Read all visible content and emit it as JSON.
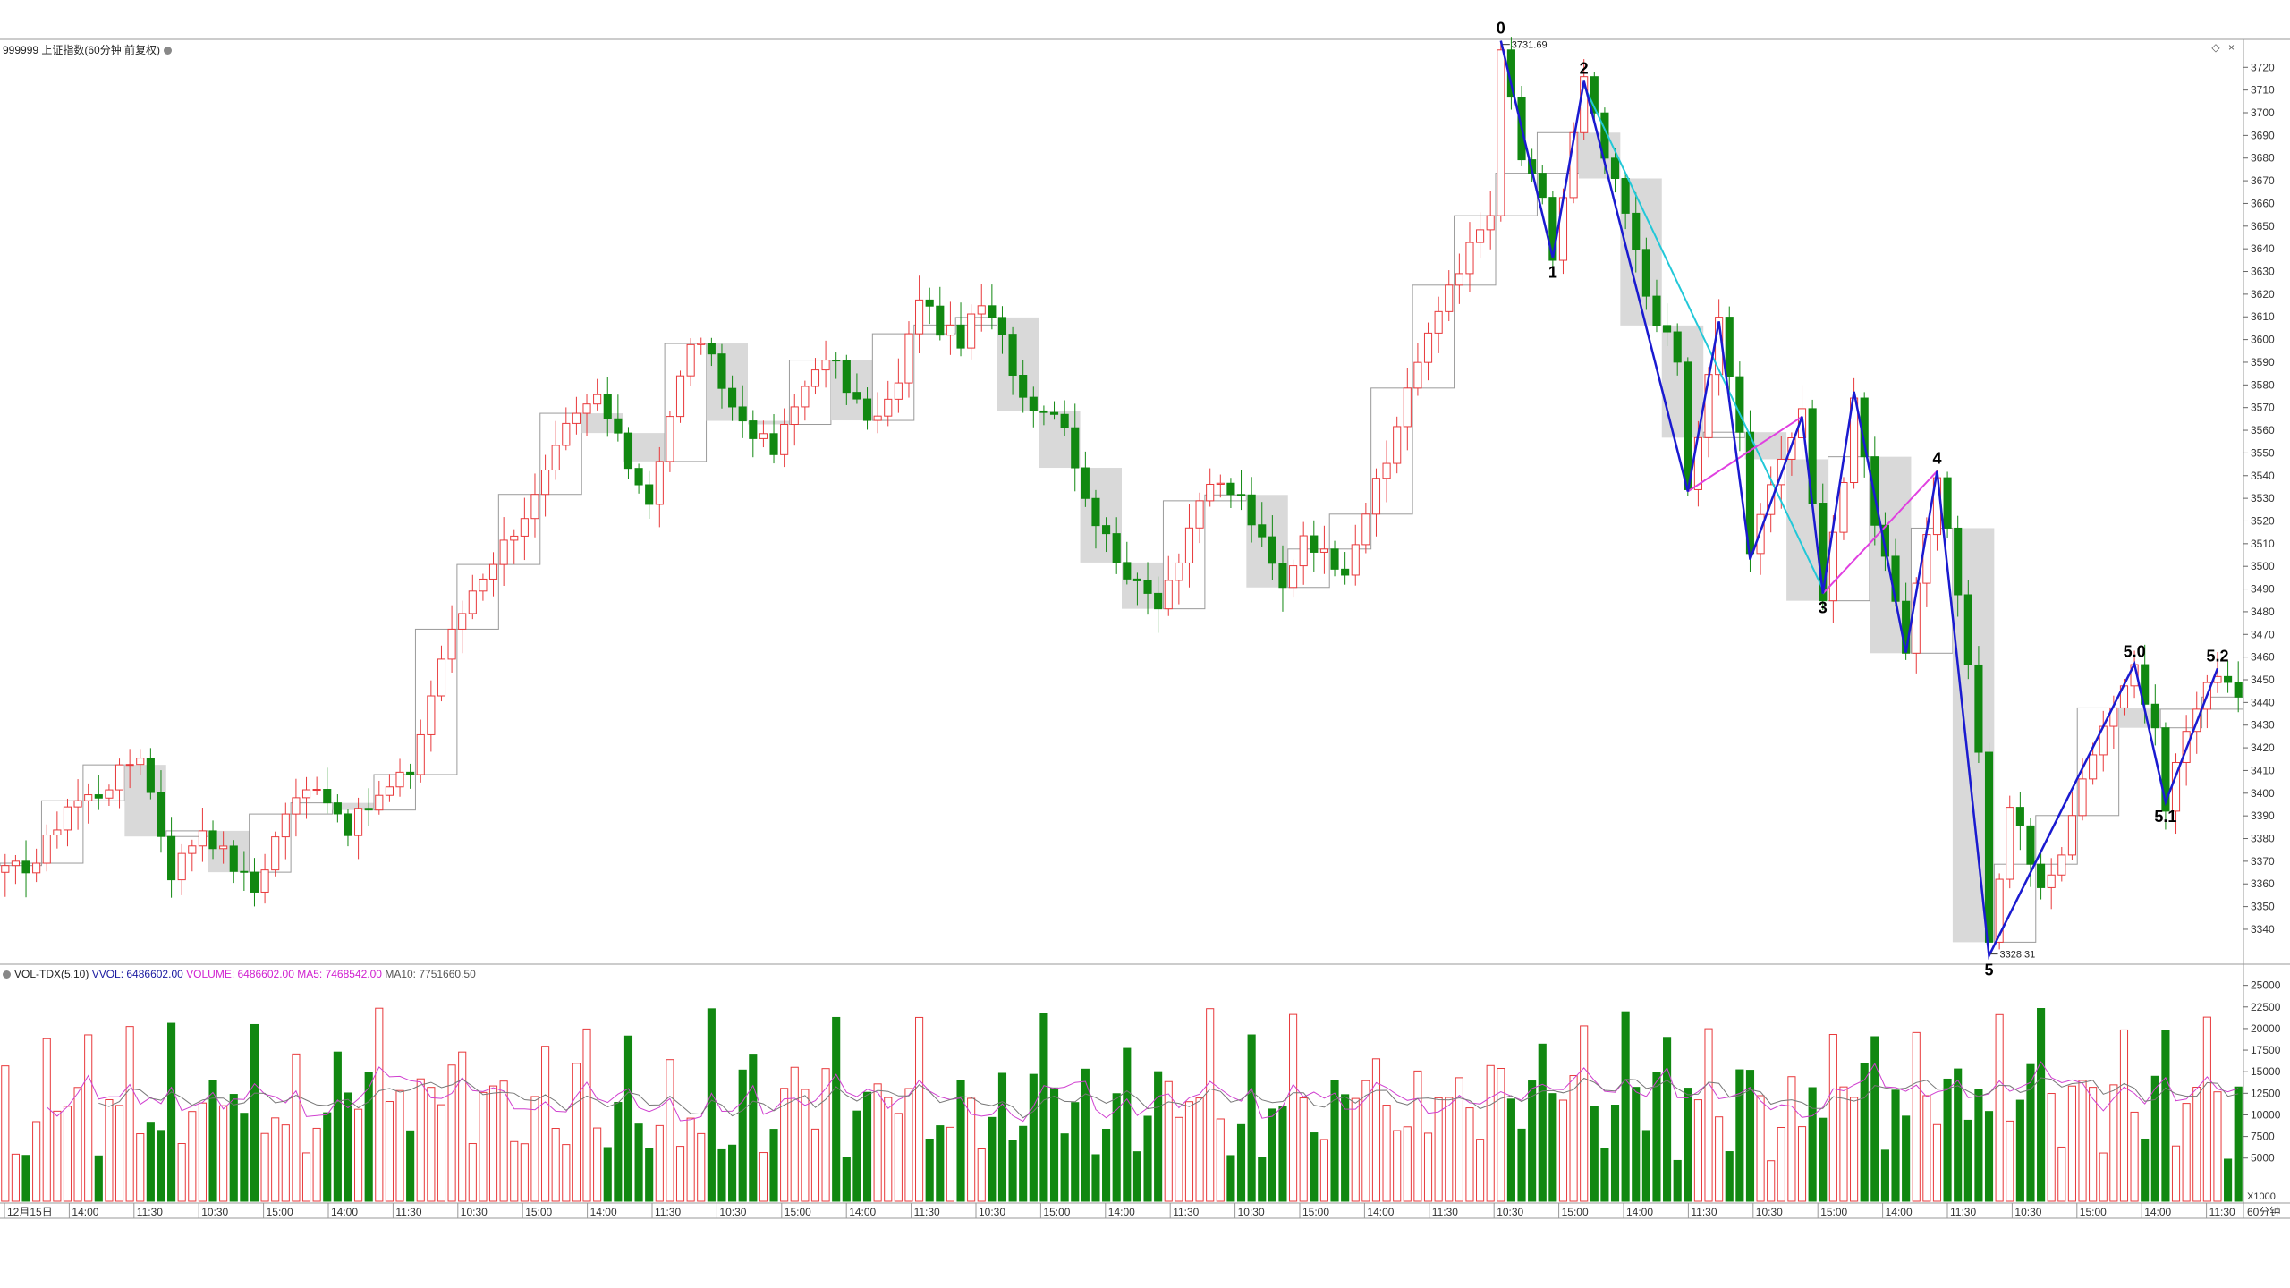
{
  "header": {
    "instrument": "999999 上证指数(60分钟 前复权)",
    "controls": [
      "◇",
      "×"
    ]
  },
  "volume_header": {
    "indicator": "VOL-TDX(5,10)",
    "vvol_label": "VVOL: 6486602.00",
    "volume_label": "VOLUME: 6486602.00",
    "ma5_label": "MA5: 7468542.00",
    "ma10_label": "MA10: 7751660.50"
  },
  "price_axis": {
    "min": 3325,
    "max": 3728,
    "ticks": [
      3340,
      3350,
      3360,
      3370,
      3380,
      3390,
      3400,
      3410,
      3420,
      3430,
      3440,
      3450,
      3460,
      3470,
      3480,
      3490,
      3500,
      3510,
      3520,
      3530,
      3540,
      3550,
      3560,
      3570,
      3580,
      3590,
      3600,
      3610,
      3620,
      3630,
      3640,
      3650,
      3660,
      3670,
      3680,
      3690,
      3700,
      3710,
      3720
    ]
  },
  "volume_axis": {
    "max": 26000,
    "ticks": [
      5000,
      7500,
      10000,
      12500,
      15000,
      17500,
      20000,
      22500,
      25000
    ],
    "unit_label": "X1000"
  },
  "time_axis": {
    "labels": [
      "12月15日",
      "14:00",
      "11:30",
      "10:30",
      "15:00",
      "14:00",
      "11:30",
      "10:30",
      "15:00",
      "14:00",
      "11:30",
      "10:30",
      "15:00",
      "14:00",
      "11:30",
      "10:30",
      "15:00",
      "14:00",
      "11:30",
      "10:30",
      "15:00",
      "14:00",
      "11:30",
      "10:30",
      "15:00",
      "14:00",
      "11:30",
      "10:30",
      "15:00",
      "14:00",
      "11:30",
      "10:30",
      "15:00",
      "14:00",
      "11:30"
    ],
    "period_label": "60分钟"
  },
  "colors": {
    "up": "#e8393b",
    "down": "#118811",
    "wave": "#1a1ad0",
    "channel_cyan": "#22c8d8",
    "channel_magenta": "#e040e0",
    "ma5": "#d040d0",
    "ma10": "#777777",
    "grid": "#d8d8d8"
  },
  "chart_data": {
    "type": "candlestick",
    "series_description": "Shanghai Composite 60-minute candles with Elliott wave labels",
    "anchors": [
      {
        "t": 0,
        "p": 3365
      },
      {
        "t": 3,
        "p": 3370
      },
      {
        "t": 6,
        "p": 3395
      },
      {
        "t": 9,
        "p": 3400
      },
      {
        "t": 13,
        "p": 3418
      },
      {
        "t": 16,
        "p": 3365
      },
      {
        "t": 19,
        "p": 3385
      },
      {
        "t": 22,
        "p": 3368
      },
      {
        "t": 24,
        "p": 3357
      },
      {
        "t": 27,
        "p": 3392
      },
      {
        "t": 30,
        "p": 3405
      },
      {
        "t": 33,
        "p": 3385
      },
      {
        "t": 36,
        "p": 3398
      },
      {
        "t": 39,
        "p": 3410
      },
      {
        "t": 42,
        "p": 3460
      },
      {
        "t": 45,
        "p": 3490
      },
      {
        "t": 48,
        "p": 3510
      },
      {
        "t": 51,
        "p": 3530
      },
      {
        "t": 54,
        "p": 3560
      },
      {
        "t": 57,
        "p": 3575
      },
      {
        "t": 60,
        "p": 3545
      },
      {
        "t": 62,
        "p": 3530
      },
      {
        "t": 64,
        "p": 3565
      },
      {
        "t": 66,
        "p": 3600
      },
      {
        "t": 68,
        "p": 3590
      },
      {
        "t": 70,
        "p": 3570
      },
      {
        "t": 72,
        "p": 3560
      },
      {
        "t": 74,
        "p": 3550
      },
      {
        "t": 76,
        "p": 3570
      },
      {
        "t": 78,
        "p": 3590
      },
      {
        "t": 80,
        "p": 3588
      },
      {
        "t": 82,
        "p": 3570
      },
      {
        "t": 84,
        "p": 3565
      },
      {
        "t": 86,
        "p": 3580
      },
      {
        "t": 88,
        "p": 3620
      },
      {
        "t": 90,
        "p": 3605
      },
      {
        "t": 92,
        "p": 3600
      },
      {
        "t": 94,
        "p": 3615
      },
      {
        "t": 96,
        "p": 3600
      },
      {
        "t": 98,
        "p": 3575
      },
      {
        "t": 100,
        "p": 3570
      },
      {
        "t": 102,
        "p": 3565
      },
      {
        "t": 103,
        "p": 3545
      },
      {
        "t": 105,
        "p": 3520
      },
      {
        "t": 107,
        "p": 3505
      },
      {
        "t": 109,
        "p": 3490
      },
      {
        "t": 111,
        "p": 3485
      },
      {
        "t": 113,
        "p": 3505
      },
      {
        "t": 115,
        "p": 3530
      },
      {
        "t": 117,
        "p": 3535
      },
      {
        "t": 119,
        "p": 3530
      },
      {
        "t": 121,
        "p": 3510
      },
      {
        "t": 123,
        "p": 3490
      },
      {
        "t": 125,
        "p": 3515
      },
      {
        "t": 127,
        "p": 3505
      },
      {
        "t": 129,
        "p": 3500
      },
      {
        "t": 131,
        "p": 3525
      },
      {
        "t": 133,
        "p": 3545
      },
      {
        "t": 135,
        "p": 3580
      },
      {
        "t": 137,
        "p": 3600
      },
      {
        "t": 139,
        "p": 3625
      },
      {
        "t": 141,
        "p": 3640
      },
      {
        "t": 143,
        "p": 3655
      },
      {
        "t": 144,
        "p": 3731.69
      },
      {
        "t": 146,
        "p": 3680
      },
      {
        "t": 148,
        "p": 3660
      },
      {
        "t": 149,
        "p": 3636
      },
      {
        "t": 151,
        "p": 3690
      },
      {
        "t": 152,
        "p": 3714
      },
      {
        "t": 154,
        "p": 3680
      },
      {
        "t": 156,
        "p": 3655
      },
      {
        "t": 158,
        "p": 3620
      },
      {
        "t": 161,
        "p": 3590
      },
      {
        "t": 162,
        "p": 3533
      },
      {
        "t": 165,
        "p": 3608
      },
      {
        "t": 167,
        "p": 3560
      },
      {
        "t": 168,
        "p": 3503
      },
      {
        "t": 170,
        "p": 3540
      },
      {
        "t": 173,
        "p": 3566
      },
      {
        "t": 175,
        "p": 3488
      },
      {
        "t": 177,
        "p": 3540
      },
      {
        "t": 178,
        "p": 3577
      },
      {
        "t": 180,
        "p": 3520
      },
      {
        "t": 183,
        "p": 3462
      },
      {
        "t": 186,
        "p": 3542
      },
      {
        "t": 188,
        "p": 3490
      },
      {
        "t": 190,
        "p": 3420
      },
      {
        "t": 191,
        "p": 3328.31
      },
      {
        "t": 193,
        "p": 3395
      },
      {
        "t": 196,
        "p": 3360
      },
      {
        "t": 198,
        "p": 3370
      },
      {
        "t": 200,
        "p": 3410
      },
      {
        "t": 203,
        "p": 3440
      },
      {
        "t": 205,
        "p": 3457
      },
      {
        "t": 207,
        "p": 3425
      },
      {
        "t": 208,
        "p": 3396
      },
      {
        "t": 210,
        "p": 3428
      },
      {
        "t": 213,
        "p": 3455
      },
      {
        "t": 215,
        "p": 3445
      }
    ],
    "extremes": {
      "high": {
        "label": "3731.69",
        "t": 144,
        "p": 3731.69
      },
      "low": {
        "label": "3328.31",
        "t": 191,
        "p": 3328.31
      }
    },
    "wave_labels": [
      {
        "label": "0",
        "t": 144,
        "p": 3731.69,
        "pos": "above"
      },
      {
        "label": "1",
        "t": 149,
        "p": 3636,
        "pos": "below"
      },
      {
        "label": "2",
        "t": 152,
        "p": 3714,
        "pos": "above"
      },
      {
        "label": "3",
        "t": 175,
        "p": 3488,
        "pos": "below"
      },
      {
        "label": "4",
        "t": 186,
        "p": 3542,
        "pos": "above"
      },
      {
        "label": "5",
        "t": 191,
        "p": 3328.31,
        "pos": "below"
      },
      {
        "label": "5.0",
        "t": 205,
        "p": 3457,
        "pos": "above"
      },
      {
        "label": "5.1",
        "t": 208,
        "p": 3396,
        "pos": "below"
      },
      {
        "label": "5.2",
        "t": 213,
        "p": 3455,
        "pos": "above"
      }
    ],
    "wave_path": [
      {
        "t": 144,
        "p": 3731.69
      },
      {
        "t": 149,
        "p": 3636
      },
      {
        "t": 152,
        "p": 3714
      },
      {
        "t": 162,
        "p": 3533
      },
      {
        "t": 165,
        "p": 3608
      },
      {
        "t": 168,
        "p": 3503
      },
      {
        "t": 173,
        "p": 3566
      },
      {
        "t": 175,
        "p": 3488
      },
      {
        "t": 178,
        "p": 3577
      },
      {
        "t": 183,
        "p": 3462
      },
      {
        "t": 186,
        "p": 3542
      },
      {
        "t": 191,
        "p": 3328.31
      },
      {
        "t": 205,
        "p": 3457
      },
      {
        "t": 208,
        "p": 3396
      },
      {
        "t": 213,
        "p": 3455
      }
    ],
    "channel_cyan": [
      {
        "t": 152,
        "p": 3712
      },
      {
        "t": 175,
        "p": 3490
      }
    ],
    "channel_magenta": [
      {
        "t": 162,
        "p": 3533
      },
      {
        "t": 173,
        "p": 3566
      },
      {
        "t": 175,
        "p": 3488
      },
      {
        "t": 186,
        "p": 3542
      }
    ],
    "candle_count": 216
  }
}
